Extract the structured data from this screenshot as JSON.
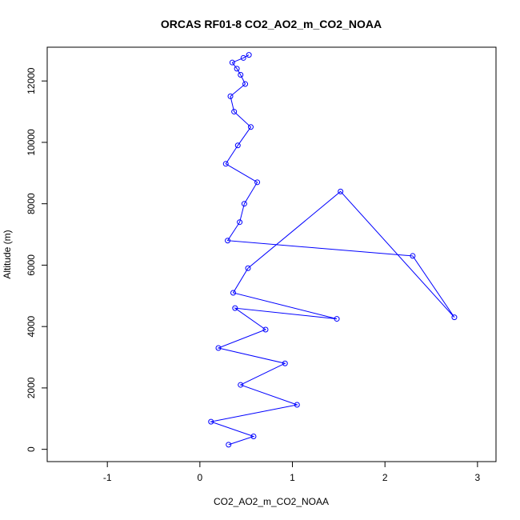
{
  "chart_data": {
    "type": "scatter",
    "title": "ORCAS RF01-8 CO2_AO2_m_CO2_NOAA",
    "xlabel": "CO2_AO2_m_CO2_NOAA",
    "ylabel": "Altitude (m)",
    "xlim": [
      -1.65,
      3.2
    ],
    "ylim": [
      -400,
      13100
    ],
    "xticks": [
      -1,
      0,
      1,
      2,
      3
    ],
    "yticks": [
      0,
      2000,
      4000,
      6000,
      8000,
      10000,
      12000
    ],
    "xtick_labels": [
      "-1",
      "0",
      "1",
      "2",
      "3"
    ],
    "ytick_labels": [
      "0",
      "2000",
      "4000",
      "6000",
      "8000",
      "10000",
      "12000"
    ],
    "series": [
      {
        "type": "line-with-open-circles",
        "color": "#0000ff",
        "x": [
          0.31,
          0.58,
          0.12,
          1.05,
          0.44,
          0.92,
          0.2,
          0.71,
          0.38,
          1.48,
          0.36,
          0.52,
          1.52,
          2.75,
          2.3,
          0.3,
          0.43,
          0.48,
          0.62,
          0.28,
          0.41,
          0.55,
          0.37,
          0.33,
          0.49,
          0.44,
          0.4,
          0.35,
          0.47,
          0.53
        ],
        "y": [
          150,
          420,
          900,
          1450,
          2100,
          2800,
          3300,
          3900,
          4600,
          4250,
          5100,
          5900,
          8400,
          4300,
          6300,
          6800,
          7400,
          8000,
          8700,
          9300,
          9900,
          10500,
          11000,
          11500,
          11900,
          12200,
          12400,
          12600,
          12750,
          12850
        ]
      }
    ],
    "grid": false,
    "legend": "none"
  }
}
